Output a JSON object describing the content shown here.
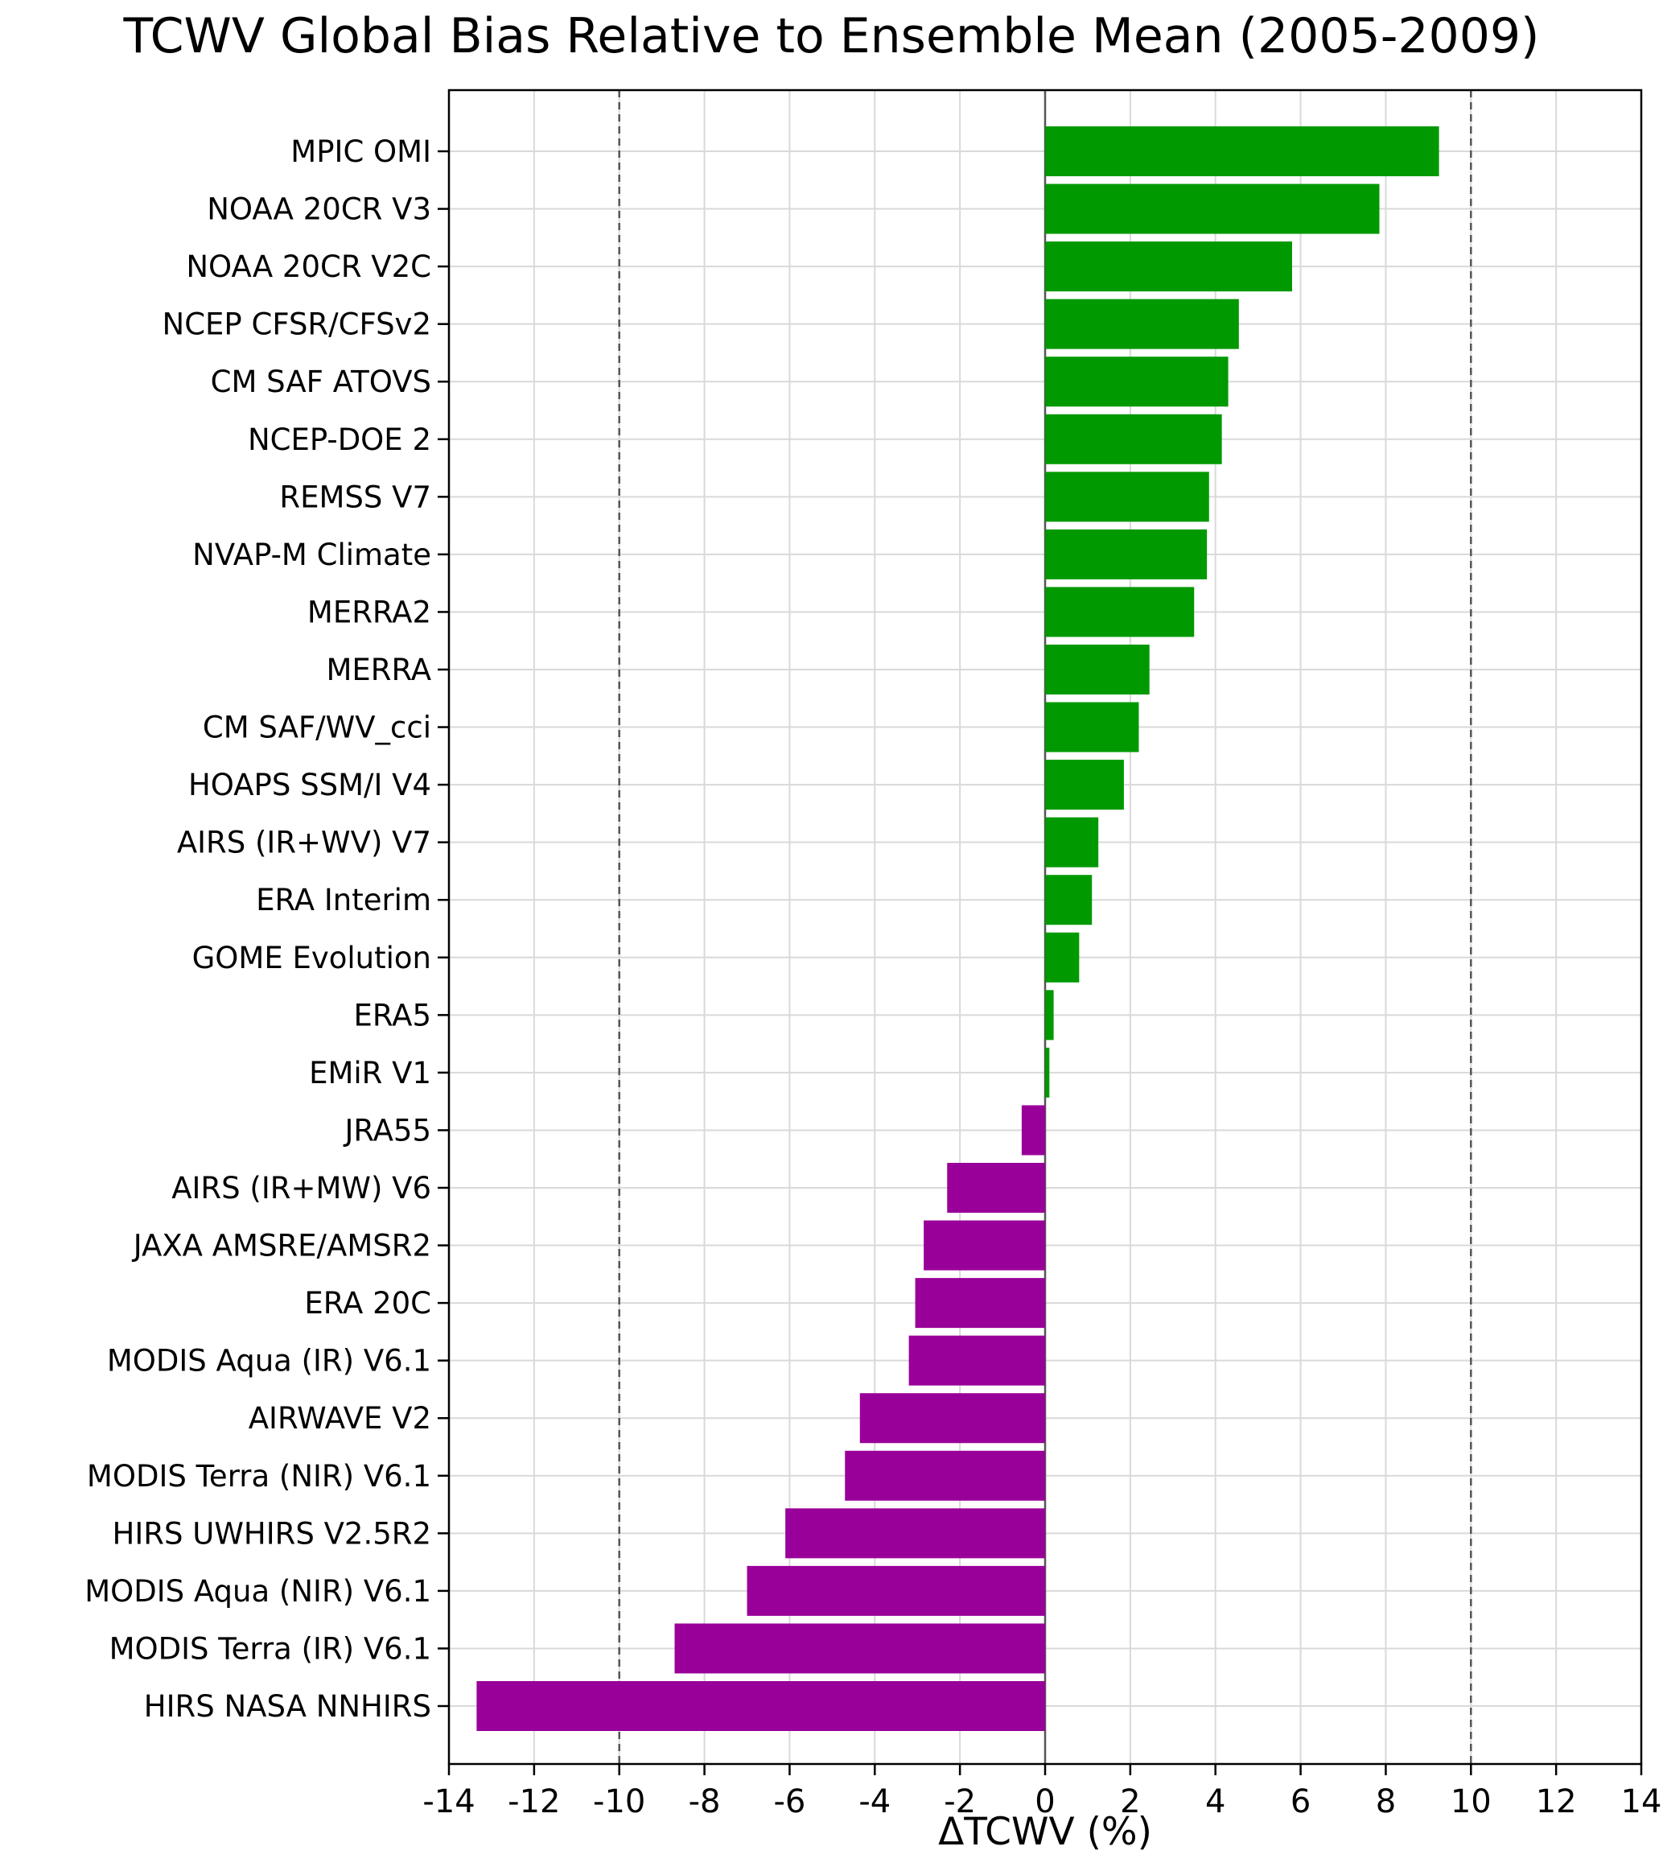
{
  "chart_data": {
    "type": "bar",
    "orientation": "horizontal",
    "title": "TCWV Global Bias Relative to Ensemble Mean (2005-2009)",
    "xlabel": "ΔTCWV (%)",
    "ylabel": "",
    "xlim": [
      -14,
      14
    ],
    "xticks": [
      -14,
      -12,
      -10,
      -8,
      -6,
      -4,
      -2,
      0,
      2,
      4,
      6,
      8,
      10,
      12,
      14
    ],
    "grid": true,
    "reference_lines": [
      {
        "x": -10,
        "style": "dashed"
      },
      {
        "x": 10,
        "style": "dashed"
      },
      {
        "x": 0,
        "style": "solid"
      }
    ],
    "colors": {
      "positive": "#009900",
      "negative": "#990099"
    },
    "categories": [
      "MPIC OMI",
      "NOAA 20CR V3",
      "NOAA 20CR V2C",
      "NCEP CFSR/CFSv2",
      "CM SAF ATOVS",
      "NCEP-DOE 2",
      "REMSS V7",
      "NVAP-M Climate",
      "MERRA2",
      "MERRA",
      "CM SAF/WV_cci",
      "HOAPS SSM/I V4",
      "AIRS (IR+WV) V7",
      "ERA Interim",
      "GOME Evolution",
      "ERA5",
      "EMiR V1",
      "JRA55",
      "AIRS (IR+MW) V6",
      "JAXA AMSRE/AMSR2",
      "ERA 20C",
      "MODIS Aqua (IR) V6.1",
      "AIRWAVE V2",
      "MODIS Terra (NIR) V6.1",
      "HIRS UWHIRS V2.5R2",
      "MODIS Aqua (NIR) V6.1",
      "MODIS Terra (IR) V6.1",
      "HIRS NASA NNHIRS"
    ],
    "values": [
      9.25,
      7.85,
      5.8,
      4.55,
      4.3,
      4.15,
      3.85,
      3.8,
      3.5,
      2.45,
      2.2,
      1.85,
      1.25,
      1.1,
      0.8,
      0.2,
      0.1,
      -0.55,
      -2.3,
      -2.85,
      -3.05,
      -3.2,
      -4.35,
      -4.7,
      -6.1,
      -7.0,
      -8.7,
      -13.35
    ]
  }
}
